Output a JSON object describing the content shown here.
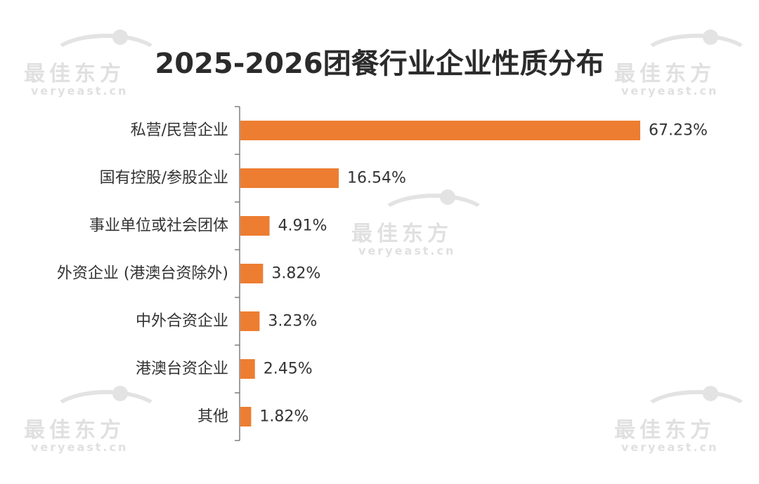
{
  "watermark": {
    "cn": "最佳东方",
    "en": "veryeast.cn"
  },
  "chart_data": {
    "type": "bar",
    "orientation": "horizontal",
    "title": "2025-2026团餐行业企业性质分布",
    "categories": [
      "私营/民营企业",
      "国有控股/参股企业",
      "事业单位或社会团体",
      "外资企业 (港澳台资除外)",
      "中外合资企业",
      "港澳台资企业",
      "其他"
    ],
    "values": [
      67.23,
      16.54,
      4.91,
      3.82,
      3.23,
      2.45,
      1.82
    ],
    "value_labels": [
      "67.23%",
      "16.54%",
      "4.91%",
      "3.82%",
      "3.23%",
      "2.45%",
      "1.82%"
    ],
    "xlim": [
      0,
      67.23
    ],
    "bar_color": "#ED7D31",
    "axis_color": "#7f7f7f",
    "label_color": "#333333",
    "grid": false,
    "legend": "none"
  }
}
